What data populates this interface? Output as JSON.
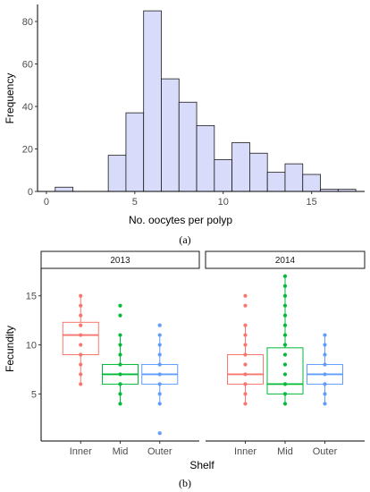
{
  "chart_data": [
    {
      "type": "bar",
      "panel_label": "(a)",
      "xlabel": "No. oocytes per polyp",
      "ylabel": "Frequency",
      "x_ticks": [
        "0",
        "5",
        "10",
        "15"
      ],
      "y_ticks": [
        "0",
        "20",
        "40",
        "60",
        "80"
      ],
      "xlim": [
        -0.5,
        18
      ],
      "ylim": [
        0,
        88
      ],
      "bin_width": 1,
      "bin_centers": [
        1,
        2,
        3,
        4,
        5,
        6,
        7,
        8,
        9,
        10,
        11,
        12,
        13,
        14,
        15,
        16,
        17
      ],
      "values": [
        2,
        0,
        0,
        17,
        37,
        85,
        53,
        42,
        31,
        15,
        23,
        18,
        9,
        13,
        8,
        1,
        1
      ],
      "bar_fill": "#d8dcfa",
      "bar_stroke": "#1a1a1a",
      "grid": false
    },
    {
      "type": "box",
      "panel_label": "(b)",
      "xlabel": "Shelf",
      "ylabel": "Fecundity",
      "facets": [
        "2013",
        "2014"
      ],
      "categories": [
        "Inner",
        "Mid",
        "Outer"
      ],
      "y_ticks": [
        "5",
        "10",
        "15"
      ],
      "ylim": [
        0.2,
        17.8
      ],
      "colors": {
        "Inner": "#f8766d",
        "Mid": "#00ba38",
        "Outer": "#619cff"
      },
      "grid": false,
      "boxes": [
        {
          "facet": "2013",
          "category": "Inner",
          "q1": 9,
          "median": 11,
          "q3": 12.3,
          "whisker_low": 6,
          "whisker_high": 15,
          "points": [
            6,
            7,
            8,
            9,
            10,
            11,
            12,
            13,
            14,
            15
          ]
        },
        {
          "facet": "2013",
          "category": "Mid",
          "q1": 6,
          "median": 7,
          "q3": 8,
          "whisker_low": 4,
          "whisker_high": 11,
          "points": [
            4,
            5,
            6,
            7,
            8,
            9,
            10,
            11,
            13,
            14
          ]
        },
        {
          "facet": "2013",
          "category": "Outer",
          "q1": 6,
          "median": 7,
          "q3": 8,
          "whisker_low": 4,
          "whisker_high": 11,
          "points": [
            1,
            4,
            5,
            6,
            7,
            8,
            9,
            10,
            11,
            12
          ]
        },
        {
          "facet": "2014",
          "category": "Inner",
          "q1": 6,
          "median": 7,
          "q3": 9,
          "whisker_low": 4,
          "whisker_high": 12,
          "points": [
            4,
            5,
            6,
            7,
            8,
            9,
            10,
            11,
            12,
            14,
            15
          ]
        },
        {
          "facet": "2014",
          "category": "Mid",
          "q1": 5,
          "median": 6,
          "q3": 9.7,
          "whisker_low": 4,
          "whisker_high": 17,
          "points": [
            4,
            5,
            6,
            7,
            8,
            9,
            10,
            11,
            12,
            13,
            14,
            15,
            16,
            17
          ]
        },
        {
          "facet": "2014",
          "category": "Outer",
          "q1": 6,
          "median": 7,
          "q3": 8,
          "whisker_low": 4,
          "whisker_high": 11,
          "points": [
            4,
            5,
            6,
            7,
            8,
            9,
            10,
            11
          ]
        }
      ]
    }
  ]
}
